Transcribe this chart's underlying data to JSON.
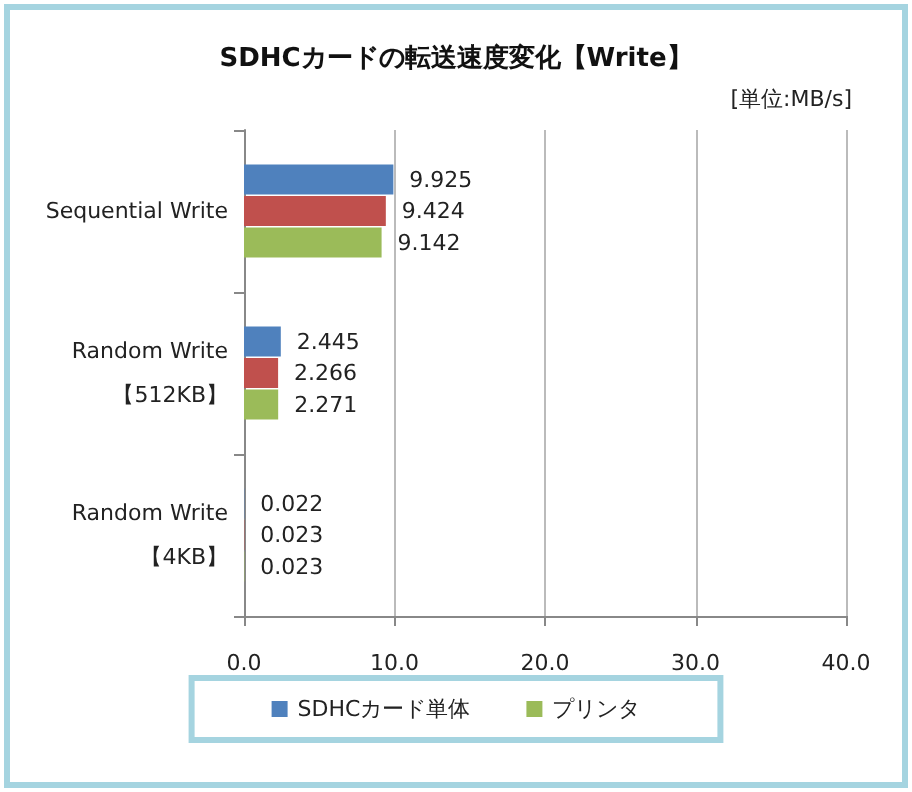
{
  "chart_data": {
    "type": "bar",
    "orientation": "horizontal",
    "title": "SDHCカードの転送速度変化【Write】",
    "annotations": [
      "[単位:MB/s]"
    ],
    "categories": [
      "Sequential Write",
      "Random Write\n【512KB】",
      "Random Write\n【4KB】"
    ],
    "series": [
      {
        "name": "SDHCカード単体",
        "color": "#4f81bd",
        "values": [
          9.925,
          2.445,
          0.022
        ]
      },
      {
        "color": "#c0504d",
        "values": [
          9.424,
          2.266,
          0.023
        ]
      },
      {
        "name": "プリンタ",
        "color": "#9bbb59",
        "values": [
          9.142,
          2.271,
          0.023
        ]
      }
    ],
    "xlim": [
      0,
      40
    ],
    "xticks": [
      {
        "value": 0,
        "label": "0.0"
      },
      {
        "value": 10,
        "label": "10.0"
      },
      {
        "value": 20,
        "label": "20.0"
      },
      {
        "value": 30,
        "label": "30.0"
      },
      {
        "value": 40,
        "label": "40.0"
      }
    ],
    "grid": "x",
    "data_labels": true,
    "legend": "bottom"
  }
}
